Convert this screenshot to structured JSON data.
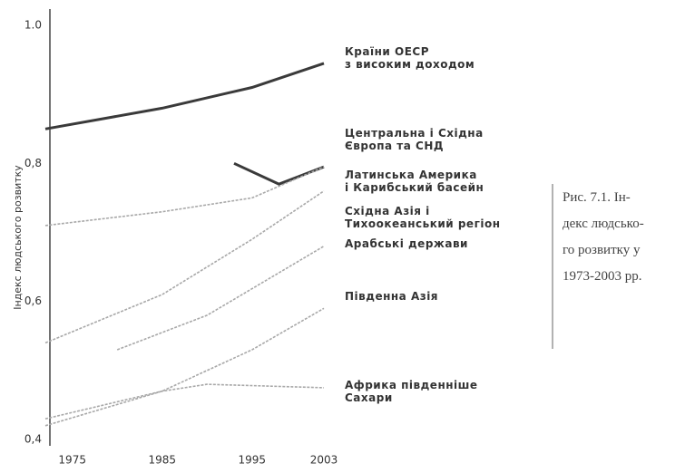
{
  "chart_data": {
    "type": "line",
    "ylabel": "Індекс людського розвитку",
    "caption": "Рис. 7.1. Ін-\nдекс людсько-\nго розвитку у\n1973-2003 рр.",
    "xlim": [
      1972,
      2003
    ],
    "xticks": [
      1975,
      1985,
      1995,
      2003
    ],
    "ylim": [
      0.4,
      1.0
    ],
    "yticks": [
      {
        "value": 0.4,
        "label": "0,4"
      },
      {
        "value": 0.6,
        "label": "0,6"
      },
      {
        "value": 0.8,
        "label": "0,8"
      },
      {
        "value": 1.0,
        "label": "1.0"
      }
    ],
    "grid": false,
    "series": [
      {
        "name": "Країни ОЕСР\nз високим доходом",
        "color": "#3a3a3a",
        "x": [
          1972,
          1985,
          1995,
          2003
        ],
        "values": [
          0.85,
          0.88,
          0.91,
          0.945
        ]
      },
      {
        "name": "Центральна і Східна\nЄвропа та СНД",
        "color": "#3a3a3a",
        "x": [
          1993,
          1998,
          2003
        ],
        "values": [
          0.8,
          0.77,
          0.795
        ]
      },
      {
        "name": "Латинська Америка\nі Карибський басейн",
        "color": "#a8a8a8",
        "x": [
          1972,
          1985,
          1995,
          2003
        ],
        "values": [
          0.71,
          0.73,
          0.75,
          0.795
        ]
      },
      {
        "name": "Східна Азія і\nТихоокеанський регіон",
        "color": "#a8a8a8",
        "x": [
          1972,
          1985,
          1995,
          2003
        ],
        "values": [
          0.54,
          0.61,
          0.69,
          0.76
        ]
      },
      {
        "name": "Арабські держави",
        "color": "#a8a8a8",
        "x": [
          1980,
          1990,
          2003
        ],
        "values": [
          0.53,
          0.58,
          0.68
        ]
      },
      {
        "name": "Південна Азія",
        "color": "#a8a8a8",
        "x": [
          1972,
          1985,
          1995,
          2003
        ],
        "values": [
          0.42,
          0.47,
          0.53,
          0.59
        ]
      },
      {
        "name": "Африка південніше\nСахари",
        "color": "#a8a8a8",
        "x": [
          1972,
          1985,
          1990,
          2003
        ],
        "values": [
          0.43,
          0.47,
          0.48,
          0.475
        ]
      }
    ]
  }
}
